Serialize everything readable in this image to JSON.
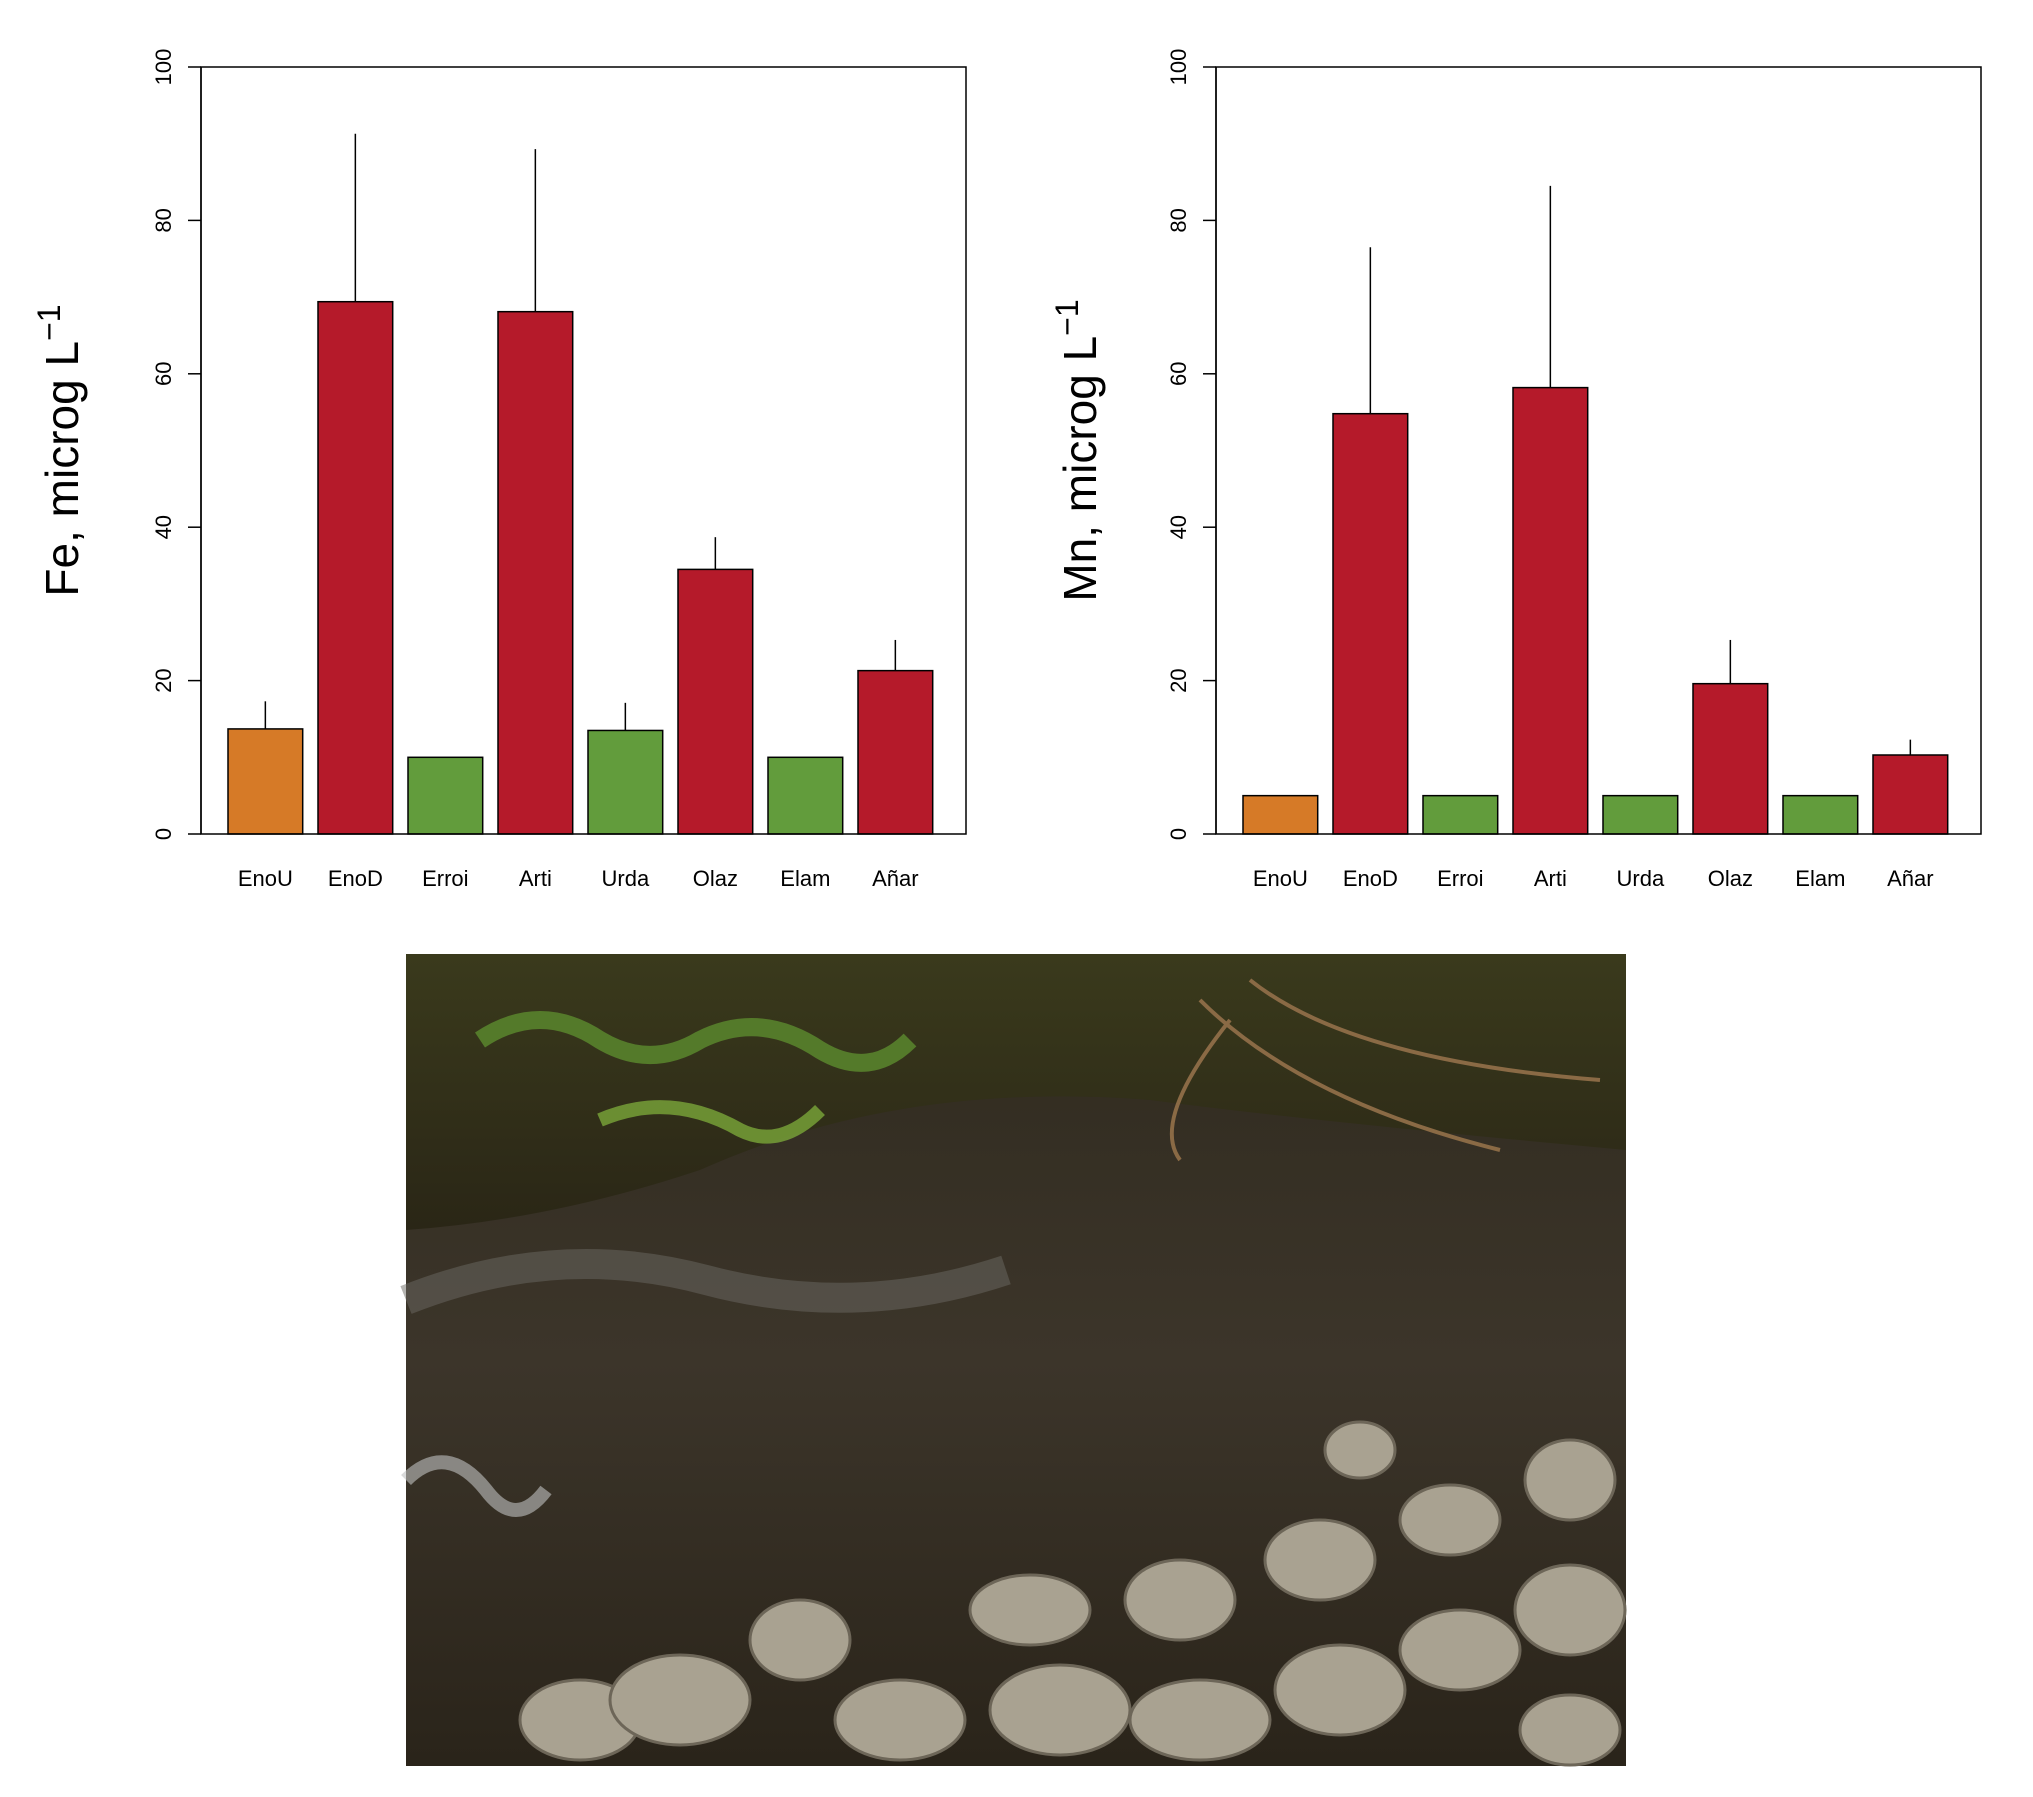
{
  "chart_data": [
    {
      "type": "bar",
      "y_label": "Fe, microg L",
      "y_label_superscript": "−1",
      "categories": [
        "EnoU",
        "EnoD",
        "Erroi",
        "Arti",
        "Urda",
        "Olaz",
        "Elam",
        "Añar"
      ],
      "values": [
        13.7,
        69.4,
        10,
        68.1,
        13.5,
        34.5,
        10,
        21.3
      ],
      "errors": [
        3.6,
        21.9,
        null,
        21.2,
        3.6,
        4.2,
        null,
        4.0
      ],
      "colors": [
        "#d67a27",
        "#b51a2a",
        "#629c3c",
        "#b51a2a",
        "#629c3c",
        "#b51a2a",
        "#629c3c",
        "#b51a2a"
      ],
      "ylim": [
        0,
        100
      ],
      "yticks": [
        0,
        20,
        40,
        60,
        80,
        100
      ]
    },
    {
      "type": "bar",
      "y_label": "Mn, microg L",
      "y_label_superscript": "−1",
      "categories": [
        "EnoU",
        "EnoD",
        "Erroi",
        "Arti",
        "Urda",
        "Olaz",
        "Elam",
        "Añar"
      ],
      "values": [
        5,
        54.8,
        5,
        58.2,
        5,
        19.6,
        5,
        10.3
      ],
      "errors": [
        null,
        21.7,
        null,
        26.3,
        null,
        5.7,
        null,
        2.0
      ],
      "colors": [
        "#d67a27",
        "#b51a2a",
        "#629c3c",
        "#b51a2a",
        "#629c3c",
        "#b51a2a",
        "#629c3c",
        "#b51a2a"
      ],
      "ylim": [
        0,
        100
      ],
      "yticks": [
        0,
        20,
        40,
        60,
        80,
        100
      ]
    }
  ]
}
